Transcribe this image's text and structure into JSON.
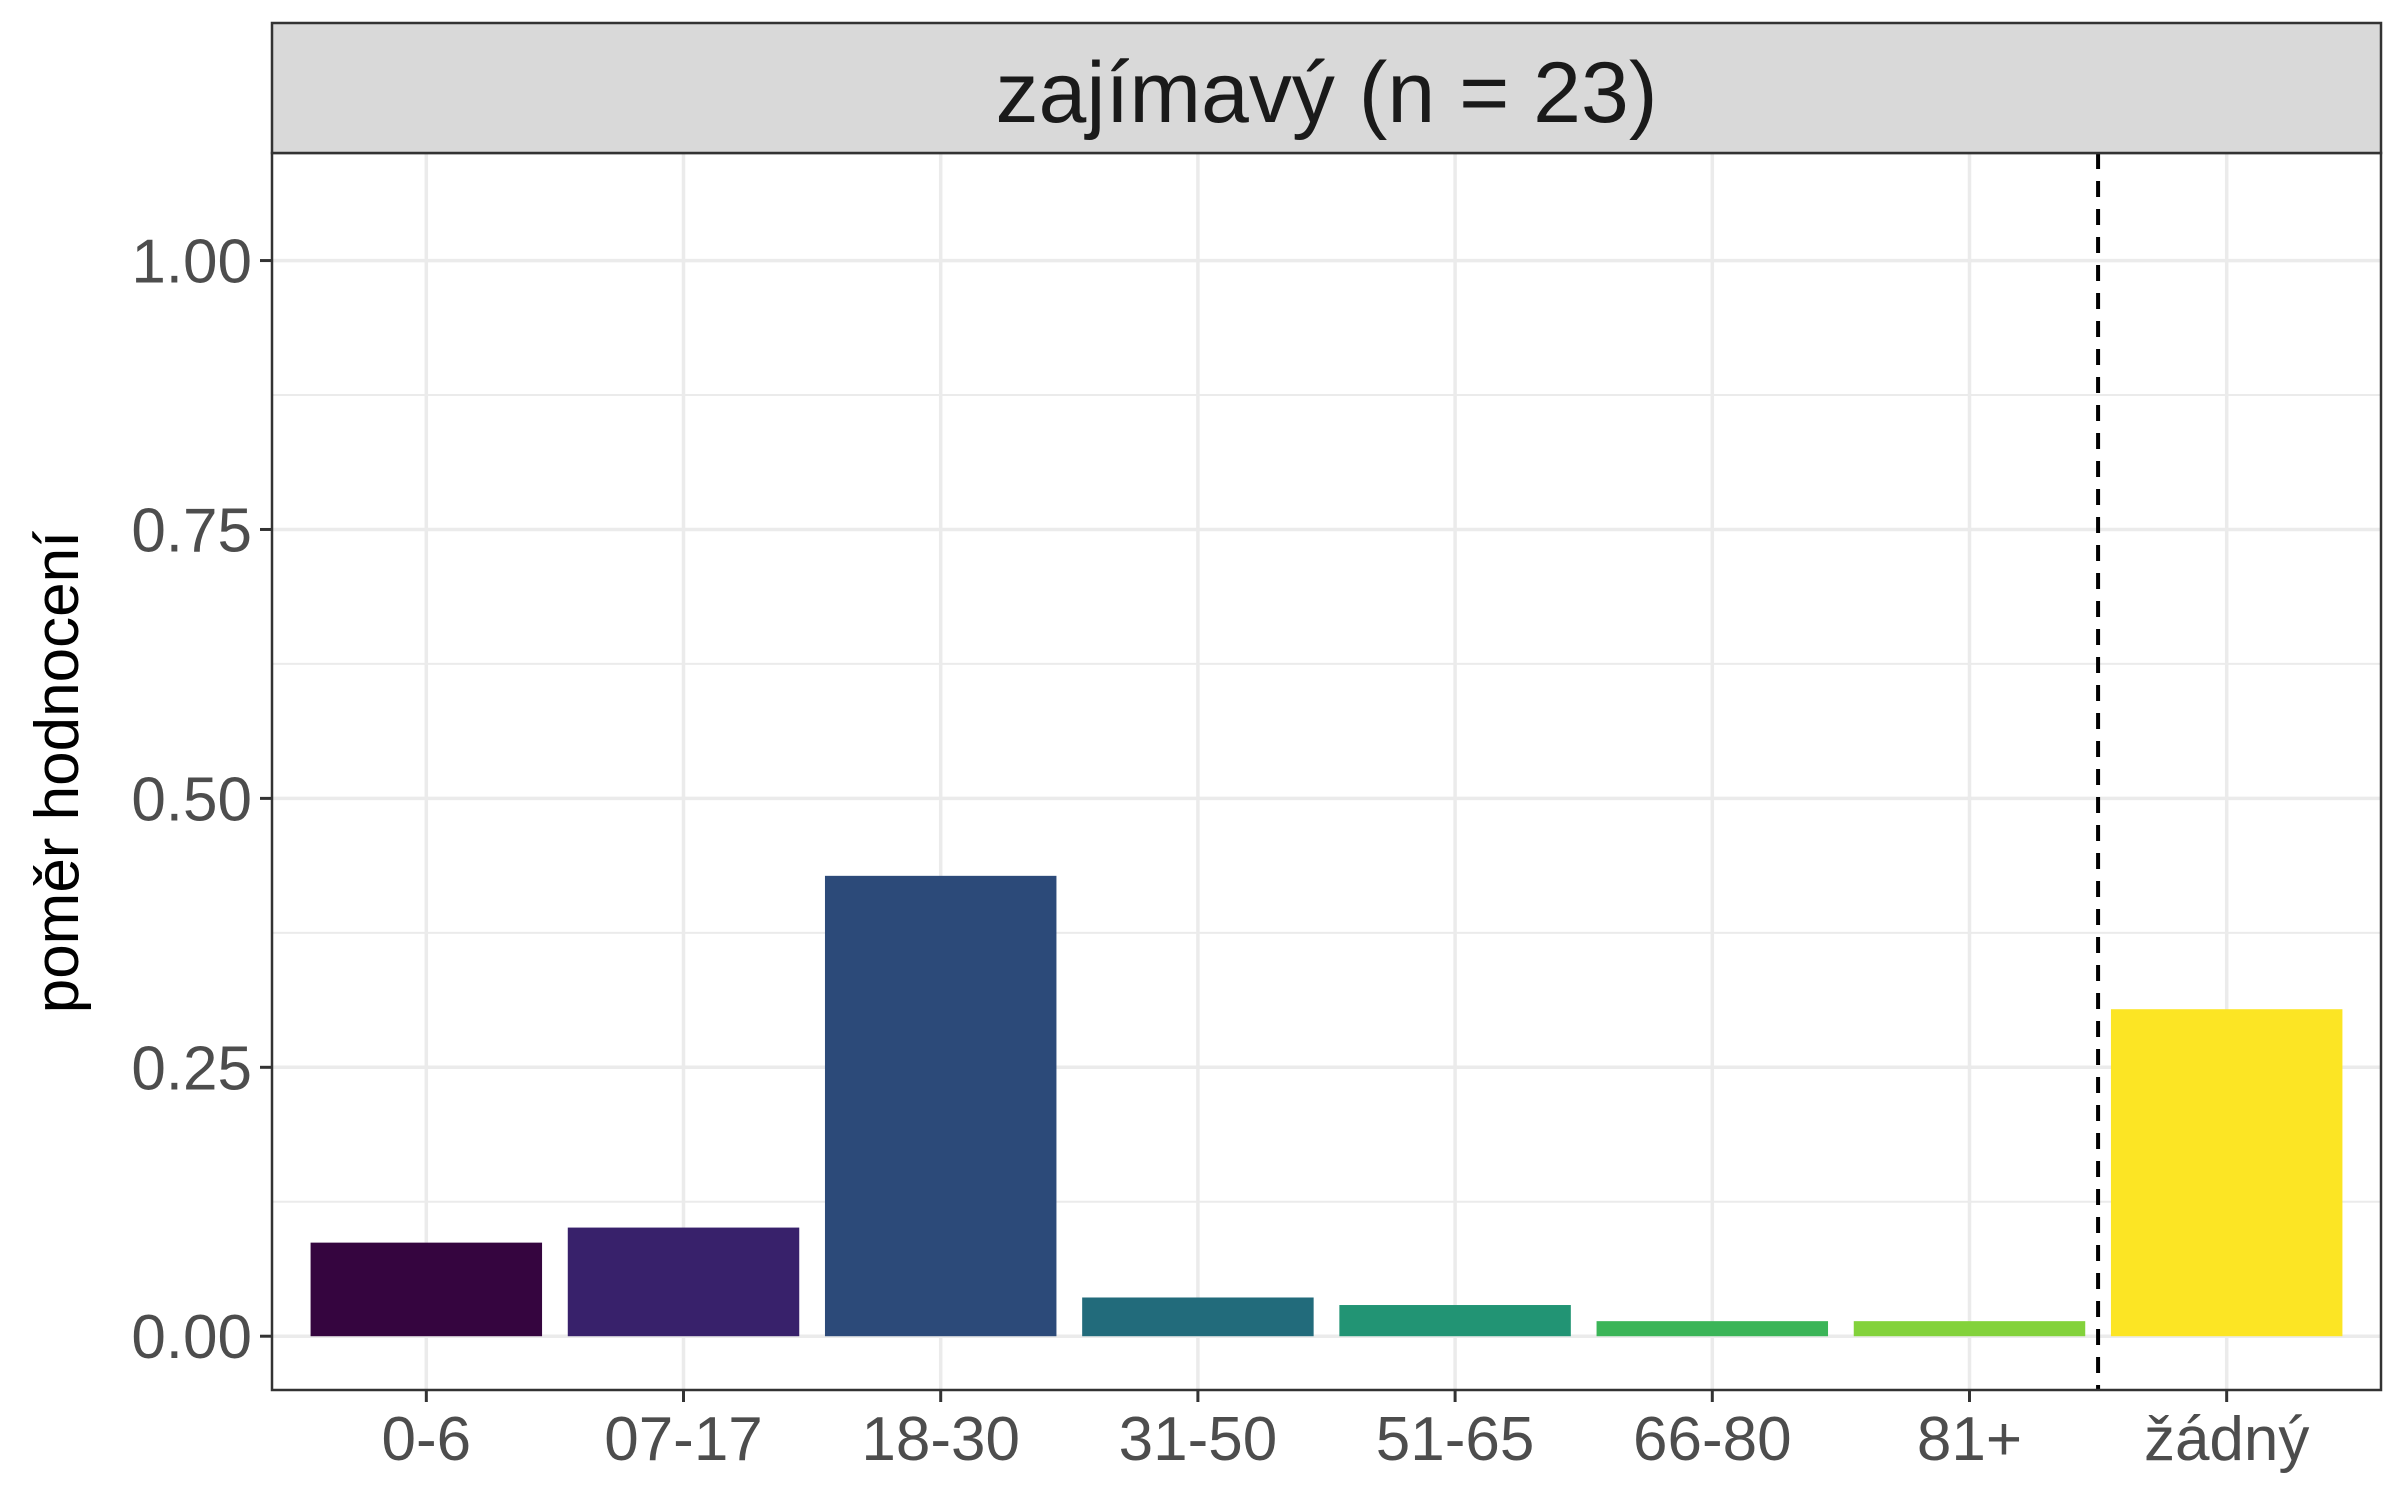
{
  "chart_data": {
    "type": "bar",
    "title": "",
    "facet_label": "zajímavý (n = 23)",
    "xlabel": "",
    "ylabel": "poměr hodnocení",
    "categories": [
      "0-6",
      "07-17",
      "18-30",
      "31-50",
      "51-65",
      "66-80",
      "81+",
      "žádný"
    ],
    "values": [
      0.087,
      0.101,
      0.428,
      0.036,
      0.029,
      0.014,
      0.014,
      0.304
    ],
    "colors": [
      "#35053f",
      "#38216b",
      "#2c4a79",
      "#226b7b",
      "#229474",
      "#3bb558",
      "#83d23b",
      "#fce524"
    ],
    "ylim": [
      -0.05,
      1.1
    ],
    "yticks": [
      0,
      0.25,
      0.5,
      0.75,
      1.0
    ],
    "ytick_labels": [
      "0.00",
      "0.25",
      "0.50",
      "0.75",
      "1.00"
    ],
    "divider_after_category": "81+",
    "divider_style": "dashed",
    "grid": true,
    "theme": "bw",
    "legend": "none"
  }
}
